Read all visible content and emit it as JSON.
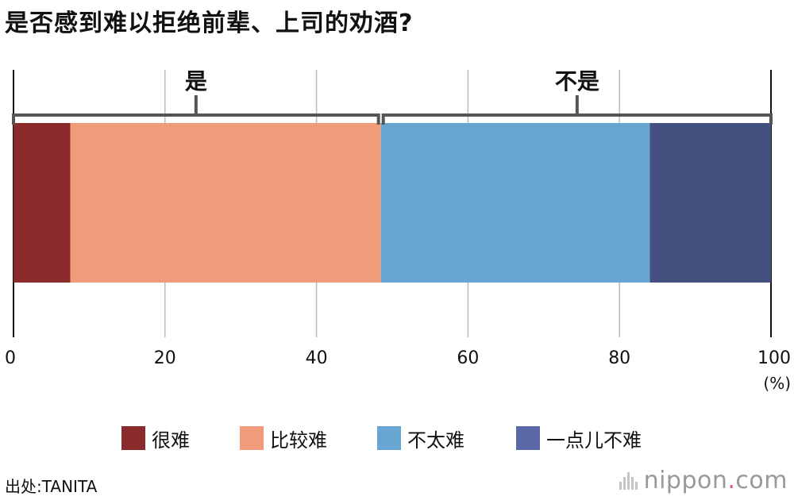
{
  "chart_data": {
    "type": "bar",
    "orientation": "horizontal",
    "stacked": true,
    "title": "是否感到难以拒绝前辈、上司的劝酒?",
    "series": [
      {
        "name": "很难",
        "value": 7.5,
        "color": "#8b2b2b"
      },
      {
        "name": "比较难",
        "value": 41.0,
        "color": "#f09b7a"
      },
      {
        "name": "不太难",
        "value": 35.5,
        "color": "#68a5d3"
      },
      {
        "name": "一点儿不难",
        "value": 16.0,
        "color": "#424f7f"
      }
    ],
    "groups": [
      {
        "label": "是",
        "from": 0,
        "to": 48.5
      },
      {
        "label": "不是",
        "from": 48.5,
        "to": 100
      }
    ],
    "xlim": [
      0,
      100
    ],
    "xticks": [
      "0",
      "20",
      "40",
      "60",
      "80",
      "100"
    ],
    "xticks_values": [
      0,
      20,
      40,
      60,
      80,
      100
    ],
    "unit": "(%)",
    "grid": true,
    "legend_position": "bottom"
  },
  "source": "出处:TANITA",
  "brand": {
    "name": "nippon",
    "dot": ".",
    "tld": "com"
  },
  "legend_colors": [
    "#8b2b2b",
    "#f09b7a",
    "#68a5d3",
    "#5b68a6"
  ]
}
